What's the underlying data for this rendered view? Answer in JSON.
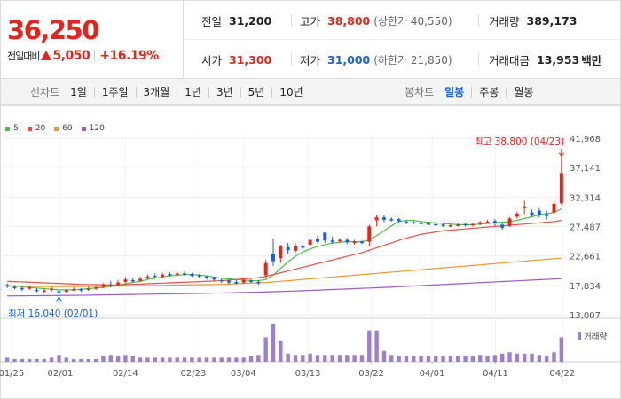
{
  "summary": {
    "price": "36,250",
    "diff_label": "전일대비",
    "diff_value": "5,050",
    "diff_pct": "+16.19%",
    "stats": [
      {
        "label": "전일",
        "value": "31,200",
        "color": "black",
        "paren": ""
      },
      {
        "label": "고가",
        "value": "38,800",
        "color": "red",
        "paren": "(상한가 40,550)"
      },
      {
        "label": "거래량",
        "value": "389,173",
        "color": "black",
        "paren": ""
      },
      {
        "label": "시가",
        "value": "31,300",
        "color": "red",
        "paren": ""
      },
      {
        "label": "저가",
        "value": "31,000",
        "color": "blue",
        "paren": "(하한가 21,850)"
      },
      {
        "label": "거래대금",
        "value": "13,953",
        "color": "black",
        "paren": "백만"
      }
    ]
  },
  "toolbar": {
    "line_label": "선차트",
    "line_periods": [
      "1일",
      "1주일",
      "3개월",
      "1년",
      "3년",
      "5년",
      "10년"
    ],
    "candle_label": "봉차트",
    "candle_periods": [
      "일봉",
      "주봉",
      "월봉"
    ],
    "active_candle": "일봉"
  },
  "chart_data": {
    "type": "candlestick",
    "legend": [
      {
        "name": "5",
        "color": "#54b948"
      },
      {
        "name": "20",
        "color": "#e8504a"
      },
      {
        "name": "60",
        "color": "#f0962a"
      },
      {
        "name": "120",
        "color": "#9b59c9"
      }
    ],
    "y_ticks": [
      "41,968",
      "37,141",
      "32,314",
      "27,487",
      "22,661",
      "17,834",
      "13,007"
    ],
    "y_range": [
      13007,
      41968
    ],
    "x_ticks": [
      "01/25",
      "02/01",
      "02/14",
      "02/23",
      "03/04",
      "03/13",
      "03/22",
      "04/01",
      "04/11",
      "04/22"
    ],
    "high_note": "최고 38,800 (04/23)",
    "low_note": "최저 16,040 (02/01)",
    "volume_label": "거래량",
    "candles": [
      {
        "o": 17900,
        "c": 17700,
        "h": 18200,
        "l": 17400,
        "v": 0.3
      },
      {
        "o": 17600,
        "c": 17500,
        "h": 17900,
        "l": 17200,
        "v": 0.2
      },
      {
        "o": 17400,
        "c": 17200,
        "h": 17700,
        "l": 16900,
        "v": 0.2
      },
      {
        "o": 17300,
        "c": 17500,
        "h": 17800,
        "l": 17100,
        "v": 0.2
      },
      {
        "o": 17100,
        "c": 16900,
        "h": 17400,
        "l": 16700,
        "v": 0.2
      },
      {
        "o": 16800,
        "c": 17000,
        "h": 17300,
        "l": 16500,
        "v": 0.2
      },
      {
        "o": 17100,
        "c": 17300,
        "h": 17600,
        "l": 16800,
        "v": 0.3
      },
      {
        "o": 16900,
        "c": 16700,
        "h": 17100,
        "l": 16040,
        "v": 0.5
      },
      {
        "o": 16800,
        "c": 17000,
        "h": 17200,
        "l": 16500,
        "v": 0.3
      },
      {
        "o": 17100,
        "c": 17200,
        "h": 17500,
        "l": 16900,
        "v": 0.2
      },
      {
        "o": 17200,
        "c": 17000,
        "h": 17400,
        "l": 16800,
        "v": 0.2
      },
      {
        "o": 17100,
        "c": 17300,
        "h": 17600,
        "l": 16900,
        "v": 0.2
      },
      {
        "o": 17300,
        "c": 17500,
        "h": 17800,
        "l": 17100,
        "v": 0.2
      },
      {
        "o": 17600,
        "c": 18000,
        "h": 18200,
        "l": 17400,
        "v": 0.4
      },
      {
        "o": 17900,
        "c": 17800,
        "h": 18600,
        "l": 17500,
        "v": 0.5
      },
      {
        "o": 18000,
        "c": 18300,
        "h": 18700,
        "l": 17800,
        "v": 0.4
      },
      {
        "o": 18400,
        "c": 18800,
        "h": 19200,
        "l": 18200,
        "v": 0.5
      },
      {
        "o": 18700,
        "c": 18500,
        "h": 19000,
        "l": 18300,
        "v": 0.4
      },
      {
        "o": 18600,
        "c": 18900,
        "h": 19300,
        "l": 18400,
        "v": 0.3
      },
      {
        "o": 19000,
        "c": 19300,
        "h": 19600,
        "l": 18800,
        "v": 0.3
      },
      {
        "o": 19400,
        "c": 19200,
        "h": 19800,
        "l": 19000,
        "v": 0.3
      },
      {
        "o": 19300,
        "c": 19600,
        "h": 19900,
        "l": 19100,
        "v": 0.3
      },
      {
        "o": 19700,
        "c": 19500,
        "h": 20000,
        "l": 19300,
        "v": 0.3
      },
      {
        "o": 19600,
        "c": 19800,
        "h": 20100,
        "l": 19300,
        "v": 0.3
      },
      {
        "o": 19800,
        "c": 19600,
        "h": 20100,
        "l": 19400,
        "v": 0.3
      },
      {
        "o": 19700,
        "c": 19400,
        "h": 19900,
        "l": 19200,
        "v": 0.3
      },
      {
        "o": 19500,
        "c": 19300,
        "h": 19700,
        "l": 19000,
        "v": 0.3
      },
      {
        "o": 19300,
        "c": 19100,
        "h": 19500,
        "l": 18800,
        "v": 0.3
      },
      {
        "o": 19000,
        "c": 18800,
        "h": 19300,
        "l": 18500,
        "v": 0.3
      },
      {
        "o": 18700,
        "c": 18500,
        "h": 19000,
        "l": 18200,
        "v": 0.3
      },
      {
        "o": 18600,
        "c": 18300,
        "h": 18800,
        "l": 18000,
        "v": 0.3
      },
      {
        "o": 18400,
        "c": 18200,
        "h": 18700,
        "l": 18000,
        "v": 0.3
      },
      {
        "o": 18300,
        "c": 18700,
        "h": 19000,
        "l": 18100,
        "v": 0.3
      },
      {
        "o": 18600,
        "c": 18400,
        "h": 18900,
        "l": 18200,
        "v": 0.4
      },
      {
        "o": 18400,
        "c": 18200,
        "h": 18700,
        "l": 17900,
        "v": 0.5
      },
      {
        "o": 19500,
        "c": 21500,
        "h": 22000,
        "l": 19000,
        "v": 1.8
      },
      {
        "o": 23000,
        "c": 21800,
        "h": 25500,
        "l": 21000,
        "v": 2.8
      },
      {
        "o": 22300,
        "c": 24300,
        "h": 24500,
        "l": 21500,
        "v": 1.5
      },
      {
        "o": 24100,
        "c": 23600,
        "h": 24800,
        "l": 23000,
        "v": 0.6
      },
      {
        "o": 23500,
        "c": 24300,
        "h": 24700,
        "l": 23200,
        "v": 0.5
      },
      {
        "o": 24300,
        "c": 24000,
        "h": 24600,
        "l": 23500,
        "v": 0.5
      },
      {
        "o": 24500,
        "c": 25300,
        "h": 25700,
        "l": 24000,
        "v": 0.6
      },
      {
        "o": 25500,
        "c": 25000,
        "h": 26000,
        "l": 24700,
        "v": 0.5
      },
      {
        "o": 26500,
        "c": 25200,
        "h": 26500,
        "l": 24800,
        "v": 0.5
      },
      {
        "o": 25200,
        "c": 25100,
        "h": 25800,
        "l": 24600,
        "v": 0.5
      },
      {
        "o": 25100,
        "c": 25300,
        "h": 25600,
        "l": 24800,
        "v": 0.5
      },
      {
        "o": 25300,
        "c": 24900,
        "h": 25600,
        "l": 24600,
        "v": 0.5
      },
      {
        "o": 24800,
        "c": 25000,
        "h": 25300,
        "l": 24500,
        "v": 0.5
      },
      {
        "o": 25000,
        "c": 24900,
        "h": 25200,
        "l": 24600,
        "v": 0.5
      },
      {
        "o": 25000,
        "c": 27500,
        "h": 27800,
        "l": 24300,
        "v": 2.3
      },
      {
        "o": 28500,
        "c": 29000,
        "h": 29400,
        "l": 27500,
        "v": 2.3
      },
      {
        "o": 29000,
        "c": 28600,
        "h": 29300,
        "l": 28200,
        "v": 0.8
      },
      {
        "o": 28700,
        "c": 28600,
        "h": 29000,
        "l": 28300,
        "v": 0.5
      },
      {
        "o": 28700,
        "c": 28400,
        "h": 28900,
        "l": 28100,
        "v": 0.4
      },
      {
        "o": 28300,
        "c": 28200,
        "h": 28500,
        "l": 27900,
        "v": 0.4
      },
      {
        "o": 28200,
        "c": 28100,
        "h": 28400,
        "l": 27900,
        "v": 0.4
      },
      {
        "o": 28100,
        "c": 28000,
        "h": 28300,
        "l": 27800,
        "v": 0.4
      },
      {
        "o": 28000,
        "c": 27900,
        "h": 28200,
        "l": 27700,
        "v": 0.4
      },
      {
        "o": 27900,
        "c": 27800,
        "h": 28100,
        "l": 27600,
        "v": 0.4
      },
      {
        "o": 27800,
        "c": 27600,
        "h": 28000,
        "l": 27400,
        "v": 0.4
      },
      {
        "o": 27600,
        "c": 27700,
        "h": 27900,
        "l": 27400,
        "v": 0.4
      },
      {
        "o": 27700,
        "c": 27800,
        "h": 28000,
        "l": 27500,
        "v": 0.4
      },
      {
        "o": 27900,
        "c": 27700,
        "h": 28100,
        "l": 27500,
        "v": 0.4
      },
      {
        "o": 27700,
        "c": 27900,
        "h": 28100,
        "l": 27500,
        "v": 0.4
      },
      {
        "o": 27900,
        "c": 28200,
        "h": 28400,
        "l": 27700,
        "v": 0.5
      },
      {
        "o": 28200,
        "c": 28300,
        "h": 28600,
        "l": 28000,
        "v": 0.4
      },
      {
        "o": 28400,
        "c": 28000,
        "h": 28700,
        "l": 27600,
        "v": 0.5
      },
      {
        "o": 27800,
        "c": 27300,
        "h": 28000,
        "l": 27000,
        "v": 0.6
      },
      {
        "o": 27600,
        "c": 28800,
        "h": 29000,
        "l": 27400,
        "v": 0.7
      },
      {
        "o": 29100,
        "c": 29600,
        "h": 29900,
        "l": 28800,
        "v": 0.6
      },
      {
        "o": 30500,
        "c": 30800,
        "h": 31700,
        "l": 29500,
        "v": 0.6
      },
      {
        "o": 29800,
        "c": 29300,
        "h": 30300,
        "l": 29000,
        "v": 0.6
      },
      {
        "o": 30100,
        "c": 29400,
        "h": 30500,
        "l": 29000,
        "v": 0.5
      },
      {
        "o": 29500,
        "c": 29200,
        "h": 30100,
        "l": 28600,
        "v": 0.4
      },
      {
        "o": 29800,
        "c": 31200,
        "h": 31600,
        "l": 29600,
        "v": 0.7
      },
      {
        "o": 31300,
        "c": 36250,
        "h": 38800,
        "l": 31000,
        "v": 1.8
      }
    ],
    "ma5": [
      17800,
      17700,
      17600,
      17500,
      17400,
      17300,
      17200,
      17100,
      17100,
      17100,
      17200,
      17300,
      17400,
      17500,
      17700,
      17900,
      18100,
      18300,
      18500,
      18800,
      19000,
      19200,
      19400,
      19500,
      19600,
      19600,
      19500,
      19400,
      19200,
      19000,
      18900,
      18800,
      18700,
      18600,
      18600,
      18800,
      19500,
      20600,
      21700,
      22600,
      23300,
      23800,
      24200,
      24500,
      24800,
      24900,
      25000,
      25000,
      25000,
      25300,
      26000,
      26800,
      27600,
      28300,
      28500,
      28500,
      28300,
      28200,
      28100,
      28000,
      27900,
      27800,
      27800,
      27800,
      27900,
      28000,
      28100,
      28200,
      28300,
      28500,
      28800,
      29100,
      29400,
      29600,
      29800,
      30400
    ],
    "ma20": [
      18500,
      18450,
      18400,
      18350,
      18300,
      18250,
      18200,
      18150,
      18100,
      18050,
      18000,
      17980,
      17960,
      17940,
      17920,
      17900,
      17950,
      18000,
      18050,
      18100,
      18150,
      18200,
      18250,
      18300,
      18350,
      18400,
      18450,
      18500,
      18550,
      18600,
      18700,
      18800,
      18900,
      19000,
      19100,
      19300,
      19600,
      19900,
      20200,
      20500,
      20800,
      21100,
      21400,
      21700,
      22000,
      22300,
      22600,
      22900,
      23200,
      23600,
      24000,
      24400,
      24800,
      25200,
      25600,
      25900,
      26200,
      26400,
      26600,
      26800,
      26900,
      27000,
      27100,
      27200,
      27300,
      27400,
      27500,
      27600,
      27700,
      27800,
      27900,
      28000,
      28100,
      28200,
      28300,
      28500
    ],
    "ma60": [
      17700,
      17690,
      17680,
      17670,
      17660,
      17650,
      17640,
      17640,
      17640,
      17650,
      17660,
      17670,
      17680,
      17690,
      17700,
      17720,
      17740,
      17760,
      17780,
      17800,
      17820,
      17840,
      17860,
      17880,
      17900,
      17920,
      17940,
      17960,
      17980,
      18000,
      18050,
      18100,
      18150,
      18200,
      18250,
      18300,
      18400,
      18500,
      18600,
      18700,
      18800,
      18900,
      19000,
      19100,
      19200,
      19300,
      19400,
      19500,
      19600,
      19700,
      19800,
      19900,
      20000,
      20100,
      20200,
      20300,
      20400,
      20500,
      20600,
      20700,
      20800,
      20900,
      21000,
      21100,
      21200,
      21300,
      21400,
      21500,
      21600,
      21700,
      21800,
      21900,
      22000,
      22100,
      22200,
      22300
    ],
    "ma120": [
      16100,
      16110,
      16120,
      16130,
      16140,
      16150,
      16160,
      16170,
      16180,
      16190,
      16200,
      16220,
      16240,
      16260,
      16280,
      16300,
      16320,
      16340,
      16360,
      16380,
      16400,
      16420,
      16440,
      16460,
      16480,
      16500,
      16520,
      16540,
      16560,
      16580,
      16600,
      16630,
      16660,
      16690,
      16720,
      16750,
      16790,
      16830,
      16870,
      16910,
      16950,
      17000,
      17050,
      17100,
      17150,
      17200,
      17250,
      17300,
      17350,
      17400,
      17450,
      17500,
      17560,
      17620,
      17680,
      17740,
      17800,
      17860,
      17920,
      17980,
      18040,
      18100,
      18160,
      18220,
      18280,
      18340,
      18400,
      18460,
      18520,
      18580,
      18640,
      18700,
      18760,
      18820,
      18880,
      18950
    ]
  }
}
